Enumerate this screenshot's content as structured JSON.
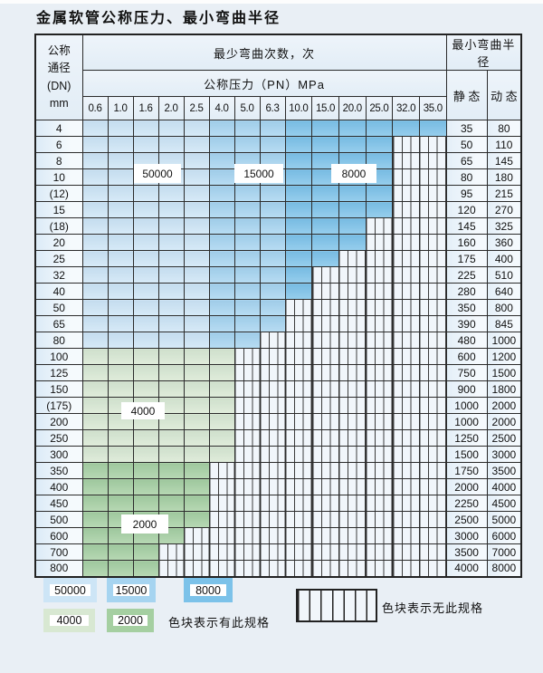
{
  "page": {
    "title": "金属软管公称压力、最小弯曲半径"
  },
  "table": {
    "dn_header": "公称\n通径\n(DN)\nmm",
    "bend_cycles_header": "最少弯曲次数，次",
    "pressure_header": "公称压力（PN）MPa",
    "radius_header": "最小弯曲半径",
    "static_header": "静 态",
    "dynamic_header": "动 态",
    "pressure_columns": [
      "0.6",
      "1.0",
      "1.6",
      "2.0",
      "2.5",
      "4.0",
      "5.0",
      "6.3",
      "10.0",
      "15.0",
      "20.0",
      "25.0",
      "32.0",
      "35.0"
    ],
    "blue_regions": [
      {
        "cycles": "50000",
        "from_col": 0,
        "to_col": 4
      },
      {
        "cycles": "15000",
        "from_col": 5,
        "to_col": 7
      },
      {
        "cycles": "8000",
        "from_col": 8,
        "to_col": 13
      }
    ],
    "rows": [
      {
        "dn": "4",
        "colored_through_col": 13,
        "zone": "blue",
        "static": "35",
        "dynamic": "80"
      },
      {
        "dn": "6",
        "colored_through_col": 11,
        "zone": "blue",
        "static": "50",
        "dynamic": "110"
      },
      {
        "dn": "8",
        "colored_through_col": 11,
        "zone": "blue",
        "static": "65",
        "dynamic": "145"
      },
      {
        "dn": "10",
        "colored_through_col": 11,
        "zone": "blue",
        "static": "80",
        "dynamic": "180"
      },
      {
        "dn": "(12)",
        "colored_through_col": 11,
        "zone": "blue",
        "static": "95",
        "dynamic": "215"
      },
      {
        "dn": "15",
        "colored_through_col": 11,
        "zone": "blue",
        "static": "120",
        "dynamic": "270"
      },
      {
        "dn": "(18)",
        "colored_through_col": 10,
        "zone": "blue",
        "static": "145",
        "dynamic": "325"
      },
      {
        "dn": "20",
        "colored_through_col": 10,
        "zone": "blue",
        "static": "160",
        "dynamic": "360"
      },
      {
        "dn": "25",
        "colored_through_col": 9,
        "zone": "blue",
        "static": "175",
        "dynamic": "400"
      },
      {
        "dn": "32",
        "colored_through_col": 8,
        "zone": "blue",
        "static": "225",
        "dynamic": "510"
      },
      {
        "dn": "40",
        "colored_through_col": 8,
        "zone": "blue",
        "static": "280",
        "dynamic": "640"
      },
      {
        "dn": "50",
        "colored_through_col": 7,
        "zone": "blue",
        "static": "350",
        "dynamic": "800"
      },
      {
        "dn": "65",
        "colored_through_col": 7,
        "zone": "blue",
        "static": "390",
        "dynamic": "845"
      },
      {
        "dn": "80",
        "colored_through_col": 6,
        "zone": "blue",
        "static": "480",
        "dynamic": "1000"
      },
      {
        "dn": "100",
        "colored_through_col": 5,
        "zone": "green-4000",
        "static": "600",
        "dynamic": "1200"
      },
      {
        "dn": "125",
        "colored_through_col": 5,
        "zone": "green-4000",
        "static": "750",
        "dynamic": "1500"
      },
      {
        "dn": "150",
        "colored_through_col": 5,
        "zone": "green-4000",
        "static": "900",
        "dynamic": "1800"
      },
      {
        "dn": "(175)",
        "colored_through_col": 5,
        "zone": "green-4000",
        "static": "1000",
        "dynamic": "2000"
      },
      {
        "dn": "200",
        "colored_through_col": 5,
        "zone": "green-4000",
        "static": "1000",
        "dynamic": "2000"
      },
      {
        "dn": "250",
        "colored_through_col": 5,
        "zone": "green-4000",
        "static": "1250",
        "dynamic": "2500"
      },
      {
        "dn": "300",
        "colored_through_col": 5,
        "zone": "green-4000",
        "static": "1500",
        "dynamic": "3000"
      },
      {
        "dn": "350",
        "colored_through_col": 4,
        "zone": "green-2000",
        "static": "1750",
        "dynamic": "3500"
      },
      {
        "dn": "400",
        "colored_through_col": 4,
        "zone": "green-2000",
        "static": "2000",
        "dynamic": "4000"
      },
      {
        "dn": "450",
        "colored_through_col": 4,
        "zone": "green-2000",
        "static": "2250",
        "dynamic": "4500"
      },
      {
        "dn": "500",
        "colored_through_col": 4,
        "zone": "green-2000",
        "static": "2500",
        "dynamic": "5000"
      },
      {
        "dn": "600",
        "colored_through_col": 3,
        "zone": "green-2000",
        "static": "3000",
        "dynamic": "6000"
      },
      {
        "dn": "700",
        "colored_through_col": 2,
        "zone": "green-2000",
        "static": "3500",
        "dynamic": "7000"
      },
      {
        "dn": "800",
        "colored_through_col": 2,
        "zone": "green-2000",
        "static": "4000",
        "dynamic": "8000"
      }
    ],
    "overlays": {
      "v50000": "50000",
      "v15000": "15000",
      "v8000": "8000",
      "v4000": "4000",
      "v2000": "2000"
    }
  },
  "legend": {
    "items": [
      {
        "cycles": "50000",
        "color": "#cde5f6"
      },
      {
        "cycles": "15000",
        "color": "#a6d4f0"
      },
      {
        "cycles": "8000",
        "color": "#7cc2e9"
      },
      {
        "cycles": "4000",
        "color": "#d8e8d2"
      },
      {
        "cycles": "2000",
        "color": "#a5cfa1"
      }
    ],
    "has_spec_text": "色块表示有此规格",
    "no_spec_text": "色块表示无此规格"
  }
}
